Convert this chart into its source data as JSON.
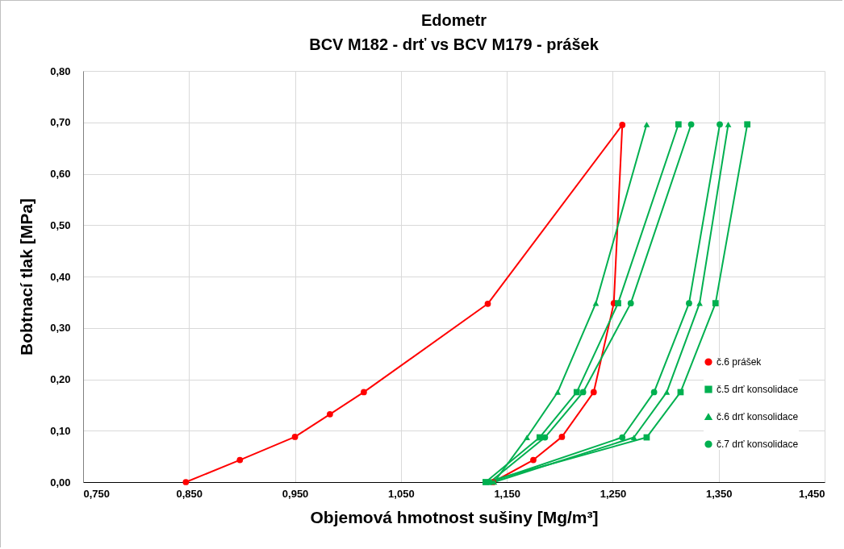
{
  "chart_data": {
    "type": "line",
    "title": "Edometr",
    "subtitle": "BCV M182 - drť  vs BCV M179 - prášek",
    "xlabel": "Objemová hmotnost sušiny [Mg/m³]",
    "ylabel": "Bobtnací tlak [MPa]",
    "xlim": [
      0.75,
      1.45
    ],
    "xticks": [
      {
        "value": 0.75,
        "label": "0,750"
      },
      {
        "value": 0.85,
        "label": "0,850"
      },
      {
        "value": 0.95,
        "label": "0,950"
      },
      {
        "value": 1.05,
        "label": "1,050"
      },
      {
        "value": 1.15,
        "label": "1,150"
      },
      {
        "value": 1.25,
        "label": "1,250"
      },
      {
        "value": 1.35,
        "label": "1,350"
      },
      {
        "value": 1.45,
        "label": "1,450"
      }
    ],
    "ylim": [
      0,
      0.8
    ],
    "yticks": [
      {
        "value": 0,
        "label": "0,00"
      },
      {
        "value": 0.1,
        "label": "0,10"
      },
      {
        "value": 0.2,
        "label": "0,20"
      },
      {
        "value": 0.3,
        "label": "0,30"
      },
      {
        "value": 0.4,
        "label": "0,40"
      },
      {
        "value": 0.5,
        "label": "0,50"
      },
      {
        "value": 0.6,
        "label": "0,60"
      },
      {
        "value": 0.7,
        "label": "0,70"
      },
      {
        "value": 0.8,
        "label": "0,80"
      }
    ],
    "grid": true,
    "legend": "right",
    "series": [
      {
        "name": "č.6 prášek",
        "color": "#ff0000",
        "marker": "circle",
        "x": [
          0.847,
          0.898,
          0.95,
          0.983,
          1.015,
          1.132,
          1.259,
          1.251,
          1.232,
          1.202,
          1.175,
          1.137
        ],
        "values": [
          0,
          0.043,
          0.088,
          0.132,
          0.175,
          0.347,
          0.695,
          0.348,
          0.175,
          0.088,
          0.043,
          0
        ]
      },
      {
        "name": "č.5 drť konsolidace",
        "color": "#00b050",
        "marker": "square",
        "x": [
          1.312,
          1.255,
          1.216,
          1.181,
          1.13,
          1.282,
          1.314,
          1.347,
          1.377
        ],
        "values": [
          0.696,
          0.348,
          0.175,
          0.087,
          0,
          0.087,
          0.175,
          0.348,
          0.696
        ]
      },
      {
        "name": "č.6 drť konsolidace",
        "color": "#00b050",
        "marker": "triangle",
        "x": [
          1.282,
          1.234,
          1.198,
          1.169,
          1.138,
          1.27,
          1.301,
          1.332,
          1.359
        ],
        "values": [
          0.696,
          0.348,
          0.175,
          0.087,
          0,
          0.087,
          0.175,
          0.348,
          0.696
        ]
      },
      {
        "name": "č.7 drť konsolidace",
        "color": "#00b050",
        "marker": "circle",
        "x": [
          1.324,
          1.267,
          1.222,
          1.186,
          1.134,
          1.259,
          1.289,
          1.322,
          1.351
        ],
        "values": [
          0.696,
          0.348,
          0.175,
          0.087,
          0,
          0.087,
          0.175,
          0.348,
          0.696
        ]
      }
    ]
  }
}
